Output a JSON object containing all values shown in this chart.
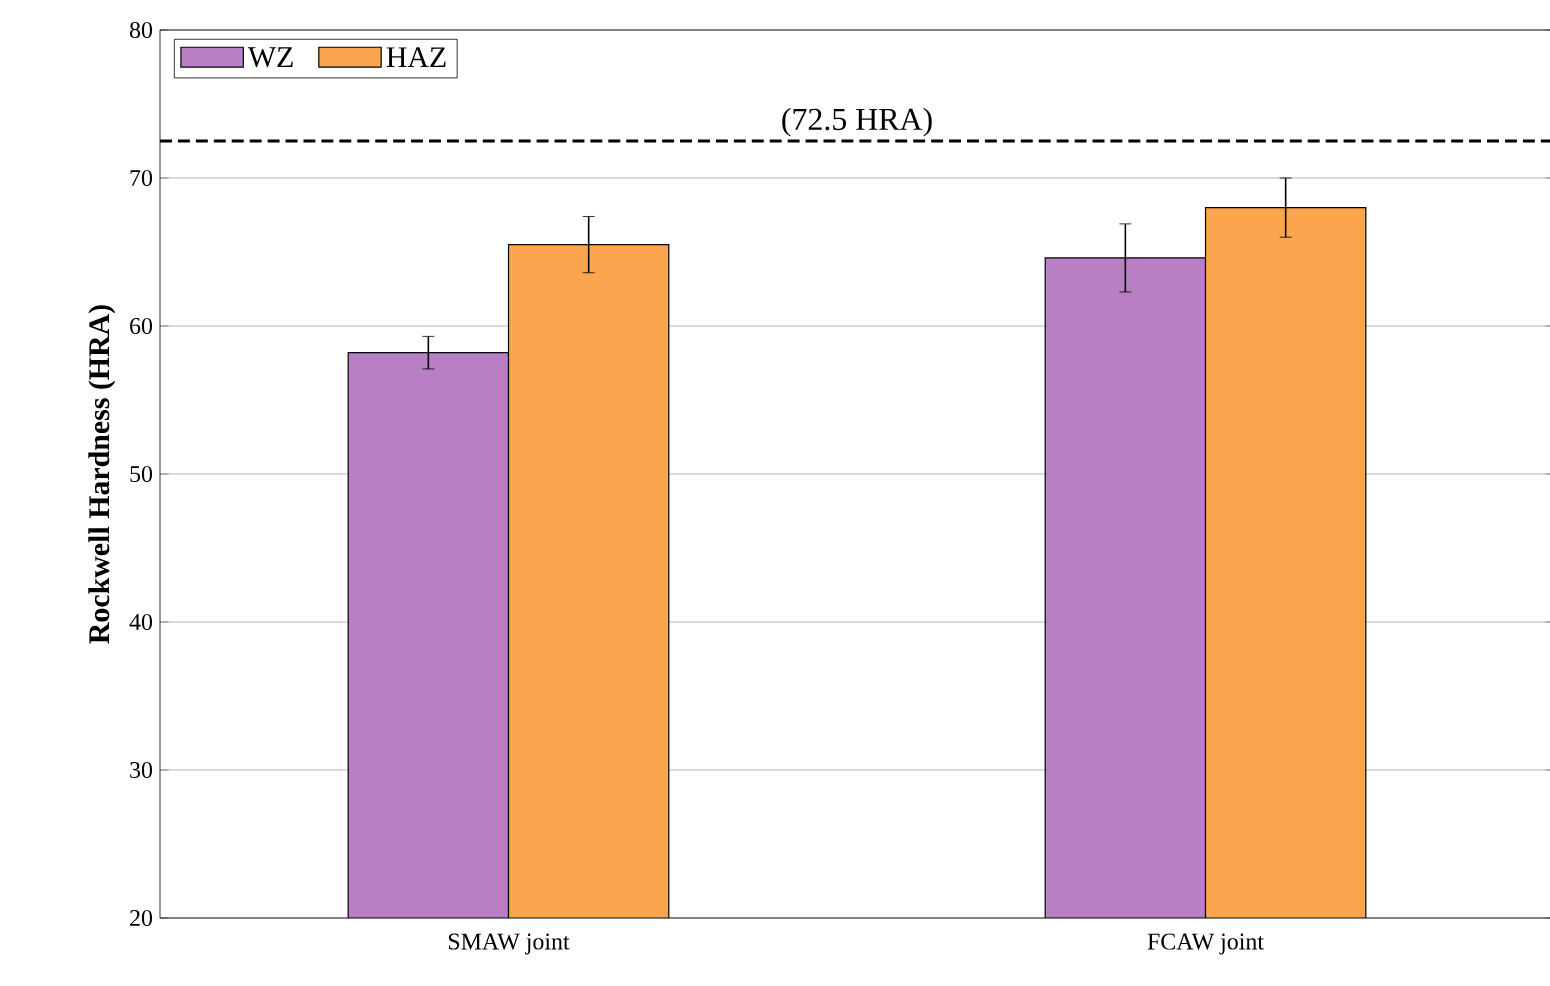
{
  "chart_data": {
    "type": "bar",
    "ylabel": "**Rockwell Hardness (HRA)**",
    "categories": [
      "SMAW joint",
      "FCAW joint"
    ],
    "series": [
      {
        "name": "WZ",
        "color": "#b87fc4",
        "values": [
          58.2,
          64.6
        ],
        "errors": [
          1.1,
          2.3
        ]
      },
      {
        "name": "HAZ",
        "color": "#fba54f",
        "values": [
          65.5,
          68.0
        ],
        "errors": [
          1.9,
          2.0
        ]
      }
    ],
    "ylim": [
      20,
      80
    ],
    "yticks": [
      20,
      30,
      40,
      50,
      60,
      70,
      80
    ],
    "grid": "y",
    "legend": "top left",
    "ref_lines": [
      {
        "axis": "y",
        "value": 72.5,
        "label": "(72.5 HRA)",
        "color": "#000000",
        "line_style": "dashed"
      }
    ]
  }
}
